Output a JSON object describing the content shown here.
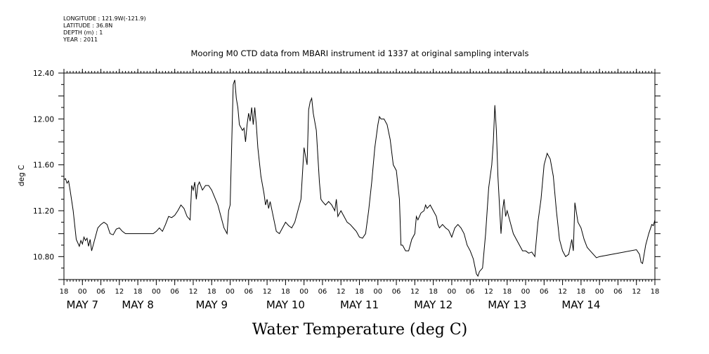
{
  "header": {
    "meta_lines": [
      "LONGITUDE : 121.9W(-121.9)",
      "LATITUDE : 36.8N",
      "DEPTH (m) : 1",
      "YEAR : 2011"
    ]
  },
  "footer": {
    "label": "Water Temperature (deg C)"
  },
  "chart_data": {
    "type": "line",
    "title": "Mooring M0 CTD data from MBARI instrument id 1337 at original sampling intervals",
    "ylabel": "deg C",
    "xlabel": "",
    "x_unit": "hours since 2011-05-06 18:00",
    "xlim": [
      0,
      192
    ],
    "ylim": [
      10.6,
      12.4
    ],
    "y_ticks": [
      "10.80",
      "11.20",
      "11.60",
      "12.00",
      "12.40"
    ],
    "x_ticks": [
      "18",
      "00",
      "06",
      "12",
      "18",
      "00",
      "06",
      "12",
      "18",
      "00",
      "06",
      "12",
      "18",
      "00",
      "06",
      "12",
      "18",
      "00",
      "06",
      "12",
      "18",
      "00",
      "06",
      "12",
      "18",
      "00",
      "06",
      "12",
      "18",
      "00",
      "06",
      "12",
      "18"
    ],
    "day_labels": [
      {
        "text": "MAY  7",
        "hour": 6
      },
      {
        "text": "MAY  8",
        "hour": 24
      },
      {
        "text": "MAY  9",
        "hour": 48
      },
      {
        "text": "MAY 10",
        "hour": 72
      },
      {
        "text": "MAY 11",
        "hour": 96
      },
      {
        "text": "MAY 12",
        "hour": 120
      },
      {
        "text": "MAY 13",
        "hour": 144
      },
      {
        "text": "MAY 14",
        "hour": 168
      }
    ],
    "grid": false,
    "line_color": "#000000",
    "series": [
      {
        "values": [
          [
            0,
            11.47
          ],
          [
            0.5,
            11.48
          ],
          [
            1,
            11.44
          ],
          [
            1.5,
            11.46
          ],
          [
            2,
            11.38
          ],
          [
            3,
            11.2
          ],
          [
            4,
            10.95
          ],
          [
            5,
            10.89
          ],
          [
            5.5,
            10.94
          ],
          [
            6,
            10.91
          ],
          [
            6.5,
            10.97
          ],
          [
            7,
            10.94
          ],
          [
            7.5,
            10.96
          ],
          [
            8,
            10.89
          ],
          [
            8.5,
            10.95
          ],
          [
            9,
            10.85
          ],
          [
            10,
            10.95
          ],
          [
            11,
            11.05
          ],
          [
            12,
            11.08
          ],
          [
            13,
            11.1
          ],
          [
            14,
            11.08
          ],
          [
            15,
            11.0
          ],
          [
            16,
            10.99
          ],
          [
            17,
            11.04
          ],
          [
            18,
            11.05
          ],
          [
            19,
            11.02
          ],
          [
            20,
            11.0
          ],
          [
            22,
            11.0
          ],
          [
            25,
            11.0
          ],
          [
            29,
            11.0
          ],
          [
            30,
            11.02
          ],
          [
            31,
            11.05
          ],
          [
            32,
            11.02
          ],
          [
            33,
            11.08
          ],
          [
            34,
            11.15
          ],
          [
            35,
            11.14
          ],
          [
            36,
            11.16
          ],
          [
            37,
            11.2
          ],
          [
            38,
            11.25
          ],
          [
            39,
            11.22
          ],
          [
            40,
            11.15
          ],
          [
            41,
            11.12
          ],
          [
            41.5,
            11.42
          ],
          [
            42,
            11.38
          ],
          [
            42.5,
            11.45
          ],
          [
            43,
            11.3
          ],
          [
            43.5,
            11.42
          ],
          [
            44,
            11.45
          ],
          [
            45,
            11.38
          ],
          [
            46,
            11.42
          ],
          [
            47,
            11.42
          ],
          [
            48,
            11.38
          ],
          [
            50,
            11.25
          ],
          [
            51,
            11.15
          ],
          [
            52,
            11.05
          ],
          [
            53,
            11.0
          ],
          [
            53.5,
            11.2
          ],
          [
            54,
            11.25
          ],
          [
            55,
            12.3
          ],
          [
            55.5,
            12.34
          ],
          [
            56,
            12.18
          ],
          [
            56.5,
            12.1
          ],
          [
            57,
            11.95
          ],
          [
            58,
            11.9
          ],
          [
            58.5,
            11.92
          ],
          [
            59,
            11.8
          ],
          [
            59.5,
            11.95
          ],
          [
            60,
            12.05
          ],
          [
            60.5,
            11.98
          ],
          [
            61,
            12.1
          ],
          [
            61.5,
            11.95
          ],
          [
            62,
            12.1
          ],
          [
            62.5,
            11.95
          ],
          [
            63,
            11.75
          ],
          [
            64,
            11.5
          ],
          [
            65,
            11.35
          ],
          [
            65.5,
            11.25
          ],
          [
            66,
            11.3
          ],
          [
            66.5,
            11.22
          ],
          [
            67,
            11.28
          ],
          [
            68,
            11.15
          ],
          [
            69,
            11.02
          ],
          [
            70,
            11.0
          ],
          [
            71,
            11.05
          ],
          [
            72,
            11.1
          ],
          [
            73,
            11.07
          ],
          [
            74,
            11.05
          ],
          [
            75,
            11.1
          ],
          [
            76,
            11.2
          ],
          [
            77,
            11.3
          ],
          [
            78,
            11.75
          ],
          [
            79,
            11.6
          ],
          [
            79.5,
            12.08
          ],
          [
            80,
            12.15
          ],
          [
            80.5,
            12.18
          ],
          [
            81,
            12.05
          ],
          [
            82,
            11.9
          ],
          [
            83,
            11.45
          ],
          [
            83.5,
            11.3
          ],
          [
            84,
            11.28
          ],
          [
            85,
            11.25
          ],
          [
            86,
            11.28
          ],
          [
            87,
            11.25
          ],
          [
            88,
            11.2
          ],
          [
            88.5,
            11.3
          ],
          [
            89,
            11.15
          ],
          [
            90,
            11.2
          ],
          [
            91,
            11.15
          ],
          [
            92,
            11.1
          ],
          [
            93,
            11.08
          ],
          [
            94,
            11.05
          ],
          [
            95,
            11.02
          ],
          [
            96,
            10.97
          ],
          [
            97,
            10.96
          ],
          [
            98,
            11.0
          ],
          [
            99,
            11.2
          ],
          [
            100,
            11.45
          ],
          [
            101,
            11.75
          ],
          [
            102,
            11.95
          ],
          [
            102.5,
            12.02
          ],
          [
            103,
            12.0
          ],
          [
            104,
            12.0
          ],
          [
            105,
            11.95
          ],
          [
            106,
            11.82
          ],
          [
            107,
            11.6
          ],
          [
            108,
            11.55
          ],
          [
            109,
            11.3
          ],
          [
            109.5,
            10.9
          ],
          [
            110,
            10.9
          ],
          [
            111,
            10.85
          ],
          [
            112,
            10.85
          ],
          [
            113,
            10.95
          ],
          [
            114,
            11.0
          ],
          [
            114.5,
            11.15
          ],
          [
            115,
            11.12
          ],
          [
            116,
            11.18
          ],
          [
            117,
            11.2
          ],
          [
            117.5,
            11.25
          ],
          [
            118,
            11.22
          ],
          [
            119,
            11.25
          ],
          [
            120,
            11.2
          ],
          [
            121,
            11.15
          ],
          [
            121.5,
            11.08
          ],
          [
            122,
            11.05
          ],
          [
            123,
            11.08
          ],
          [
            124,
            11.05
          ],
          [
            125,
            11.03
          ],
          [
            126,
            10.97
          ],
          [
            127,
            11.05
          ],
          [
            128,
            11.08
          ],
          [
            129,
            11.05
          ],
          [
            130,
            11.0
          ],
          [
            131,
            10.9
          ],
          [
            132,
            10.85
          ],
          [
            133,
            10.78
          ],
          [
            134,
            10.65
          ],
          [
            134.5,
            10.63
          ],
          [
            135,
            10.67
          ],
          [
            136,
            10.7
          ],
          [
            137,
            11.0
          ],
          [
            138,
            11.4
          ],
          [
            139,
            11.6
          ],
          [
            139.5,
            11.8
          ],
          [
            140,
            12.12
          ],
          [
            140.5,
            11.9
          ],
          [
            141,
            11.5
          ],
          [
            142,
            11.0
          ],
          [
            142.5,
            11.2
          ],
          [
            143,
            11.3
          ],
          [
            143.5,
            11.15
          ],
          [
            144,
            11.2
          ],
          [
            145,
            11.1
          ],
          [
            146,
            11.0
          ],
          [
            147,
            10.95
          ],
          [
            148,
            10.9
          ],
          [
            149,
            10.85
          ],
          [
            150,
            10.85
          ],
          [
            151,
            10.83
          ],
          [
            152,
            10.84
          ],
          [
            153,
            10.8
          ],
          [
            154,
            11.1
          ],
          [
            155,
            11.3
          ],
          [
            156,
            11.6
          ],
          [
            157,
            11.7
          ],
          [
            158,
            11.65
          ],
          [
            159,
            11.5
          ],
          [
            160,
            11.2
          ],
          [
            161,
            10.95
          ],
          [
            162,
            10.85
          ],
          [
            163,
            10.8
          ],
          [
            164,
            10.82
          ],
          [
            165,
            10.95
          ],
          [
            165.5,
            10.85
          ],
          [
            166,
            11.27
          ],
          [
            167,
            11.1
          ],
          [
            168,
            11.05
          ],
          [
            169,
            10.95
          ],
          [
            170,
            10.88
          ],
          [
            171,
            10.85
          ],
          [
            172,
            10.82
          ],
          [
            173,
            10.79
          ],
          [
            174,
            10.8
          ],
          [
            186,
            10.86
          ],
          [
            187,
            10.82
          ],
          [
            187.5,
            10.75
          ],
          [
            188,
            10.74
          ],
          [
            189,
            10.9
          ],
          [
            190,
            11.0
          ],
          [
            191,
            11.08
          ],
          [
            191.5,
            11.07
          ],
          [
            192,
            11.12
          ]
        ]
      }
    ]
  }
}
